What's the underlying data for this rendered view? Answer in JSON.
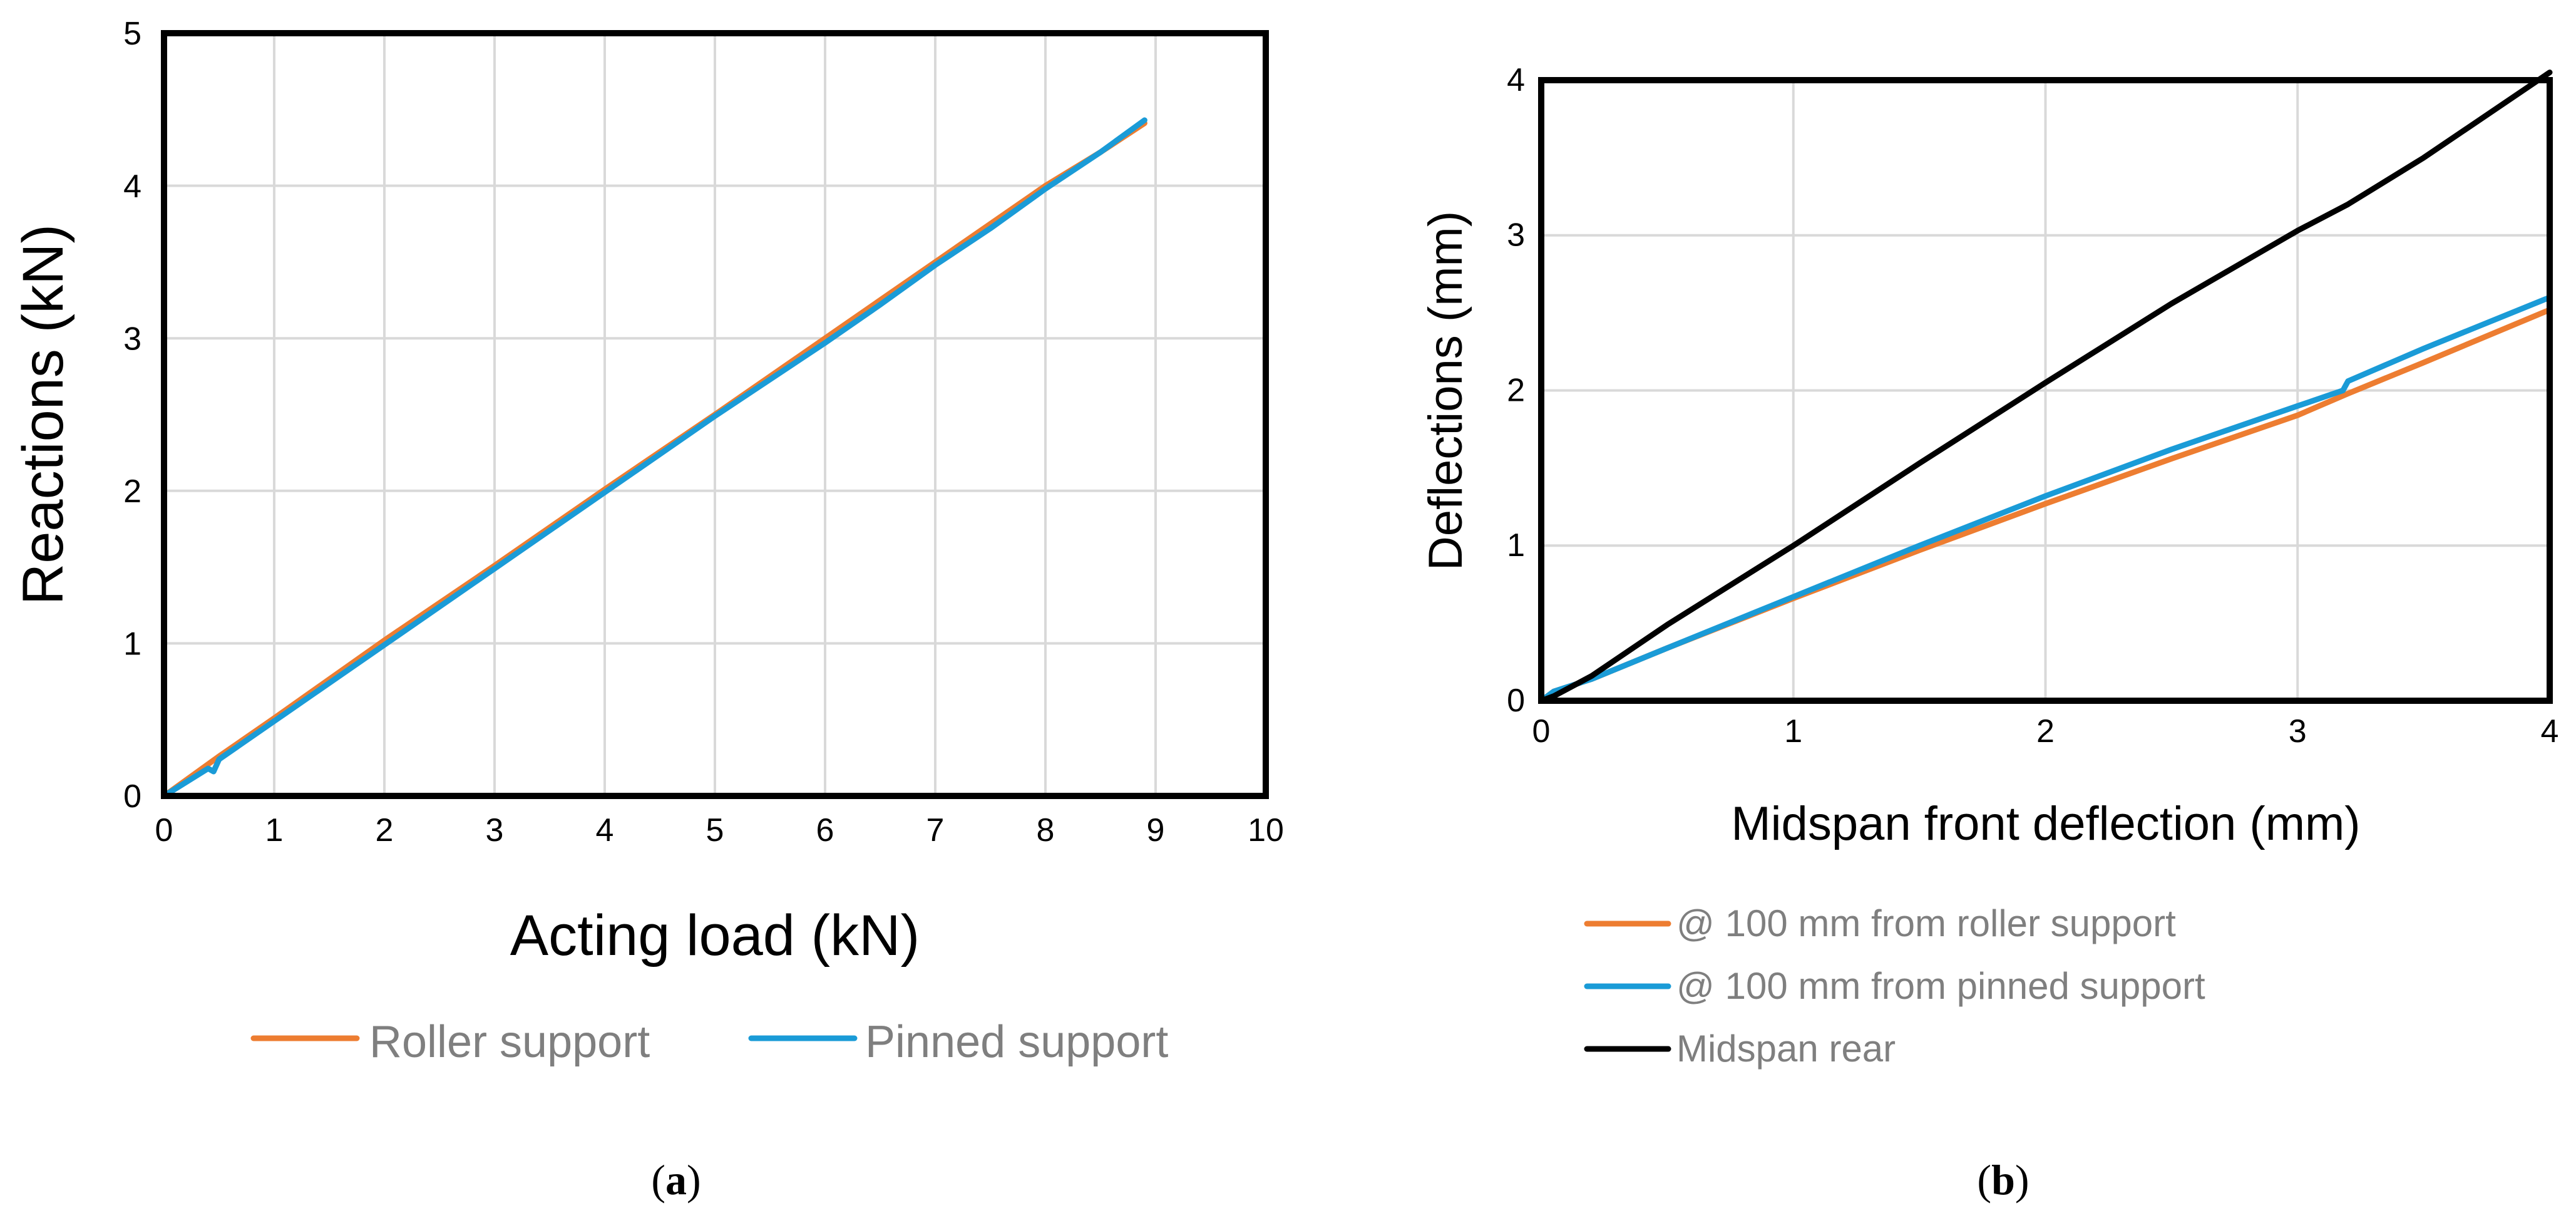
{
  "colors": {
    "roller": "#ED7D31",
    "pinned": "#1A9BD7",
    "midspan_rear": "#000000",
    "grid": "#D9D9D9",
    "legend_text": "#7F7F7F"
  },
  "chart_data": [
    {
      "id": "a",
      "panel_label": "(a)",
      "panel_label_letter": "a",
      "type": "line",
      "xlabel": "Acting load (kN)",
      "ylabel": "Reactions (kN)",
      "xlim": [
        0,
        10
      ],
      "ylim": [
        0,
        5
      ],
      "x_ticks": [
        0,
        1,
        2,
        3,
        4,
        5,
        6,
        7,
        8,
        9,
        10
      ],
      "y_ticks": [
        0,
        1,
        2,
        3,
        4,
        5
      ],
      "grid": true,
      "legend_position": "bottom",
      "series": [
        {
          "name": "Roller support",
          "color": "#ED7D31",
          "points": [
            [
              0,
              0
            ],
            [
              0.5,
              0.26
            ],
            [
              1,
              0.51
            ],
            [
              2,
              1.02
            ],
            [
              3,
              1.51
            ],
            [
              4,
              2.01
            ],
            [
              5,
              2.5
            ],
            [
              6,
              3.0
            ],
            [
              7,
              3.5
            ],
            [
              8,
              4.0
            ],
            [
              8.5,
              4.22
            ],
            [
              8.9,
              4.41
            ]
          ]
        },
        {
          "name": "Pinned support",
          "color": "#1A9BD7",
          "points": [
            [
              0,
              0
            ],
            [
              0.4,
              0.18
            ],
            [
              0.45,
              0.16
            ],
            [
              0.5,
              0.24
            ],
            [
              1,
              0.49
            ],
            [
              2,
              0.99
            ],
            [
              3,
              1.49
            ],
            [
              4,
              1.99
            ],
            [
              5,
              2.49
            ],
            [
              6,
              2.97
            ],
            [
              6.1,
              3.02
            ],
            [
              6.5,
              3.22
            ],
            [
              7,
              3.48
            ],
            [
              7.5,
              3.72
            ],
            [
              8,
              3.98
            ],
            [
              8.5,
              4.22
            ],
            [
              8.9,
              4.43
            ]
          ]
        }
      ]
    },
    {
      "id": "b",
      "panel_label": "(b)",
      "panel_label_letter": "b",
      "type": "line",
      "xlabel": "Midspan front deflection (mm)",
      "ylabel": "Deflections (mm)",
      "xlim": [
        0,
        4
      ],
      "ylim": [
        0,
        4
      ],
      "x_ticks": [
        0,
        1,
        2,
        3,
        4
      ],
      "y_ticks": [
        0,
        1,
        2,
        3,
        4
      ],
      "grid": true,
      "legend_position": "bottom-left",
      "series": [
        {
          "name": "@ 100 mm from roller support",
          "color": "#ED7D31",
          "points": [
            [
              0,
              0
            ],
            [
              0.05,
              0.06
            ],
            [
              0.2,
              0.14
            ],
            [
              0.5,
              0.34
            ],
            [
              1,
              0.66
            ],
            [
              1.5,
              0.97
            ],
            [
              2,
              1.27
            ],
            [
              2.5,
              1.56
            ],
            [
              3,
              1.84
            ],
            [
              3.2,
              1.98
            ],
            [
              3.5,
              2.18
            ],
            [
              4,
              2.52
            ]
          ]
        },
        {
          "name": "@ 100 mm from pinned support",
          "color": "#1A9BD7",
          "points": [
            [
              0,
              0
            ],
            [
              0.05,
              0.06
            ],
            [
              0.2,
              0.14
            ],
            [
              0.5,
              0.34
            ],
            [
              1,
              0.67
            ],
            [
              1.5,
              1.0
            ],
            [
              2,
              1.32
            ],
            [
              2.5,
              1.62
            ],
            [
              3,
              1.9
            ],
            [
              3.18,
              2.0
            ],
            [
              3.2,
              2.06
            ],
            [
              3.5,
              2.27
            ],
            [
              4,
              2.6
            ]
          ]
        },
        {
          "name": "Midspan rear",
          "color": "#000000",
          "points": [
            [
              0,
              0
            ],
            [
              0.05,
              0.03
            ],
            [
              0.2,
              0.16
            ],
            [
              0.5,
              0.49
            ],
            [
              1,
              1.0
            ],
            [
              1.5,
              1.53
            ],
            [
              2,
              2.05
            ],
            [
              2.5,
              2.56
            ],
            [
              3,
              3.03
            ],
            [
              3.2,
              3.2
            ],
            [
              3.5,
              3.5
            ],
            [
              4,
              4.05
            ]
          ]
        }
      ]
    }
  ]
}
